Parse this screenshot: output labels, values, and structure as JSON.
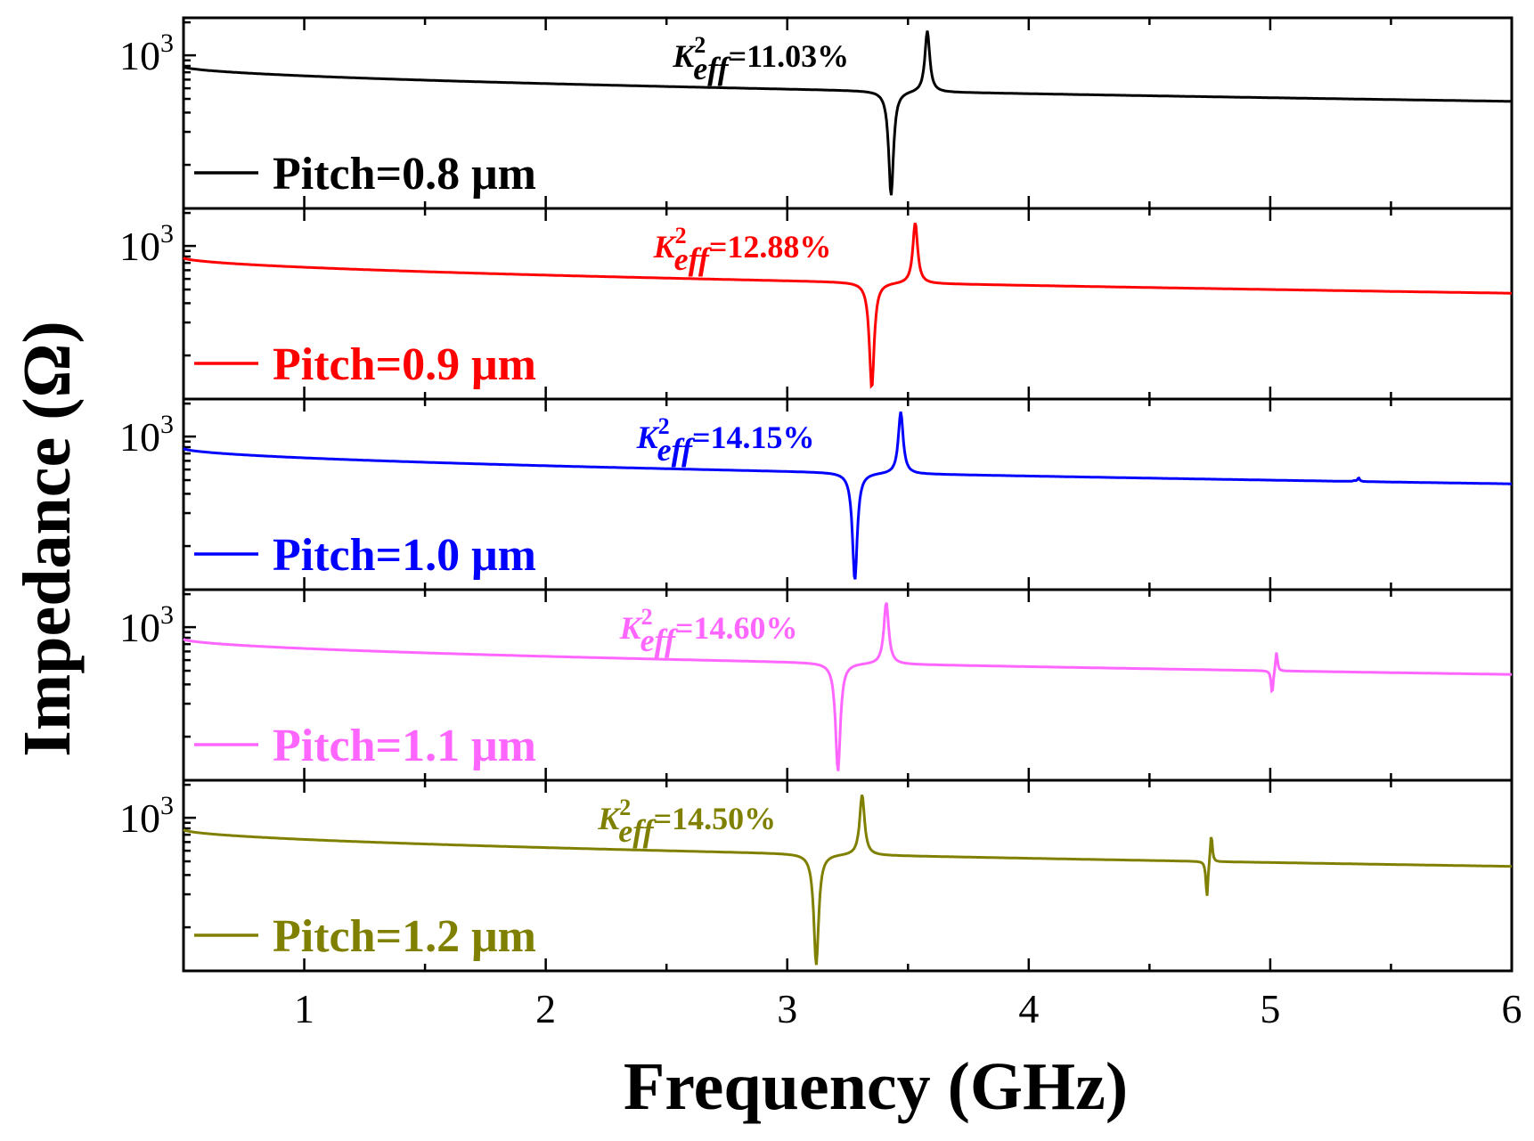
{
  "chart_data": {
    "type": "line",
    "title": "",
    "xlabel": "Frequency (GHz)",
    "ylabel": "Impedance (Ω)",
    "xlim": [
      0.5,
      6
    ],
    "x_ticks": [
      {
        "value": 1,
        "label": "1"
      },
      {
        "value": 2,
        "label": "2"
      },
      {
        "value": 3,
        "label": "3"
      },
      {
        "value": 4,
        "label": "4"
      },
      {
        "value": 5,
        "label": "5"
      },
      {
        "value": 6,
        "label": "6"
      }
    ],
    "y_scale": "log",
    "y_decade_label": {
      "base": "10",
      "exponent": "3",
      "value": 1000
    },
    "k_label_prefix": "K",
    "k_label_superscript": "2",
    "k_label_subscript": "eff",
    "series": [
      {
        "name": "Pitch=0.8 μm",
        "color": "#000000",
        "k_eff": "=11.03%",
        "start_ohm": 790,
        "end_ohm": 380,
        "fr_ghz": 3.43,
        "fa_ghz": 3.58,
        "min_ohm": 52,
        "max_ohm": 1700
      },
      {
        "name": "Pitch=0.9 μm",
        "color": "#ff0000",
        "k_eff": "=12.88%",
        "start_ohm": 780,
        "end_ohm": 370,
        "fr_ghz": 3.35,
        "fa_ghz": 3.53,
        "min_ohm": 50,
        "max_ohm": 1650
      },
      {
        "name": "Pitch=1.0 μm",
        "color": "#0000ff",
        "k_eff": "=14.15%",
        "start_ohm": 780,
        "end_ohm": 370,
        "fr_ghz": 3.28,
        "fa_ghz": 3.47,
        "min_ohm": 48,
        "max_ohm": 1700,
        "spur": {
          "ghz": 5.36,
          "min_ohm": 395,
          "max_ohm": 420
        }
      },
      {
        "name": "Pitch=1.1 μm",
        "color": "#ff66ff",
        "k_eff": "=14.60%",
        "start_ohm": 780,
        "end_ohm": 370,
        "fr_ghz": 3.21,
        "fa_ghz": 3.41,
        "min_ohm": 48,
        "max_ohm": 1700,
        "spur": {
          "ghz": 5.02,
          "min_ohm": 240,
          "max_ohm": 610
        }
      },
      {
        "name": "Pitch=1.2 μm",
        "color": "#808000",
        "k_eff": "=14.50%",
        "start_ohm": 780,
        "end_ohm": 360,
        "fr_ghz": 3.12,
        "fa_ghz": 3.31,
        "min_ohm": 45,
        "max_ohm": 1650,
        "spur": {
          "ghz": 4.75,
          "min_ohm": 180,
          "max_ohm": 740
        }
      }
    ]
  }
}
